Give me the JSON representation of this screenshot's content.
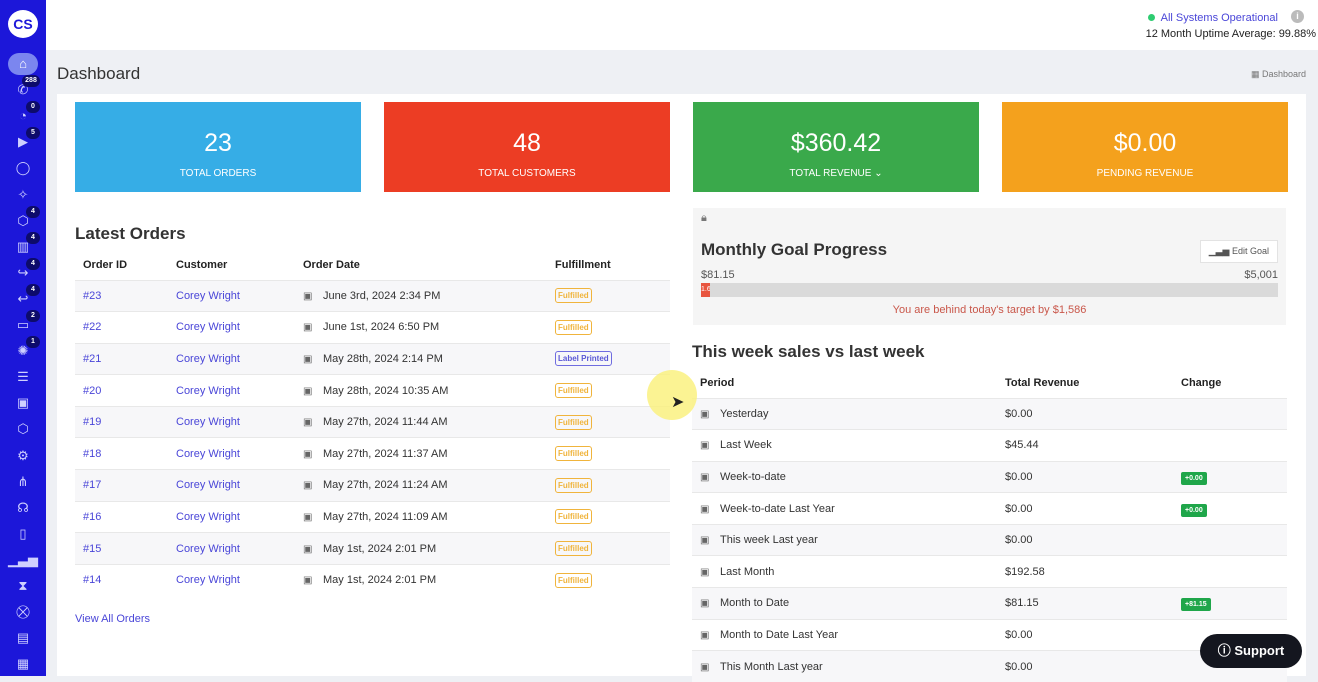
{
  "sidebar": {
    "logo": "CS",
    "items": [
      {
        "icon": "home-icon",
        "glyph": "⌂",
        "badge": null
      },
      {
        "icon": "phone-icon",
        "glyph": "✆",
        "badge": "288"
      },
      {
        "icon": "rss-icon",
        "glyph": "◔",
        "badge": "0"
      },
      {
        "icon": "play-icon",
        "glyph": "▶",
        "badge": "5"
      },
      {
        "icon": "chat-icon",
        "glyph": "◯",
        "badge": null
      },
      {
        "icon": "magic-wand-icon",
        "glyph": "✧",
        "badge": null
      },
      {
        "icon": "box-icon",
        "glyph": "⬡",
        "badge": "4"
      },
      {
        "icon": "barcode-scan-icon",
        "glyph": "▥",
        "badge": "4"
      },
      {
        "icon": "forward-icon",
        "glyph": "↪",
        "badge": "4"
      },
      {
        "icon": "return-icon",
        "glyph": "↩",
        "badge": "4"
      },
      {
        "icon": "ticket-icon",
        "glyph": "▭",
        "badge": "2"
      },
      {
        "icon": "party-icon",
        "glyph": "✺",
        "badge": "1"
      },
      {
        "icon": "user-list-icon",
        "glyph": "☰",
        "badge": null
      },
      {
        "icon": "video-icon",
        "glyph": "▣",
        "badge": null
      },
      {
        "icon": "package-icon",
        "glyph": "⬡",
        "badge": null
      },
      {
        "icon": "gear-icon",
        "glyph": "⚙",
        "badge": null
      },
      {
        "icon": "share-icon",
        "glyph": "⋔",
        "badge": null
      },
      {
        "icon": "headset-icon",
        "glyph": "☊",
        "badge": null
      },
      {
        "icon": "mobile-icon",
        "glyph": "▯",
        "badge": null
      },
      {
        "icon": "bar-chart-icon",
        "glyph": "▁▃▅",
        "badge": null
      },
      {
        "icon": "hourglass-icon",
        "glyph": "⧗",
        "badge": null
      },
      {
        "icon": "cart-icon",
        "glyph": "⛒",
        "badge": null
      },
      {
        "icon": "list-icon",
        "glyph": "▤",
        "badge": null
      },
      {
        "icon": "store-icon",
        "glyph": "▦",
        "badge": null
      }
    ]
  },
  "header": {
    "status": "All Systems Operational",
    "uptime": "12 Month Uptime Average: 99.88%"
  },
  "page": {
    "title": "Dashboard",
    "breadcrumb": "Dashboard"
  },
  "cards": [
    {
      "value": "23",
      "label": "Total Orders",
      "color": "#36ade6"
    },
    {
      "value": "48",
      "label": "Total Customers",
      "color": "#ec3d24"
    },
    {
      "value": "$360.42",
      "label": "Total Revenue ⌄",
      "color": "#3aa94b"
    },
    {
      "value": "$0.00",
      "label": "Pending Revenue",
      "color": "#f4a11d"
    }
  ],
  "orders": {
    "title": "Latest Orders",
    "headers": [
      "Order ID",
      "Customer",
      "Order Date",
      "Fulfillment"
    ],
    "rows": [
      [
        "#23",
        "Corey Wright",
        "June 3rd, 2024 2:34 PM",
        "Fulfilled"
      ],
      [
        "#22",
        "Corey Wright",
        "June 1st, 2024 6:50 PM",
        "Fulfilled"
      ],
      [
        "#21",
        "Corey Wright",
        "May 28th, 2024 2:14 PM",
        "Label Printed"
      ],
      [
        "#20",
        "Corey Wright",
        "May 28th, 2024 10:35 AM",
        "Fulfilled"
      ],
      [
        "#19",
        "Corey Wright",
        "May 27th, 2024 11:44 AM",
        "Fulfilled"
      ],
      [
        "#18",
        "Corey Wright",
        "May 27th, 2024 11:37 AM",
        "Fulfilled"
      ],
      [
        "#17",
        "Corey Wright",
        "May 27th, 2024 11:24 AM",
        "Fulfilled"
      ],
      [
        "#16",
        "Corey Wright",
        "May 27th, 2024 11:09 AM",
        "Fulfilled"
      ],
      [
        "#15",
        "Corey Wright",
        "May 1st, 2024 2:01 PM",
        "Fulfilled"
      ],
      [
        "#14",
        "Corey Wright",
        "May 1st, 2024 2:01 PM",
        "Fulfilled"
      ]
    ],
    "view_all": "View All Orders"
  },
  "goal": {
    "title": "Monthly Goal Progress",
    "edit": "Edit Goal",
    "current": "$81.15",
    "target": "$5,001",
    "percent": 1.62,
    "percent_label": "1.62%",
    "message": "You are behind today's target by $1,586"
  },
  "weekly": {
    "title": "This week sales vs last week",
    "headers": [
      "Period",
      "Total Revenue",
      "Change"
    ],
    "rows": [
      [
        "Yesterday",
        "$0.00",
        ""
      ],
      [
        "Last Week",
        "$45.44",
        ""
      ],
      [
        "Week-to-date",
        "$0.00",
        "+0.00"
      ],
      [
        "Week-to-date Last Year",
        "$0.00",
        "+0.00"
      ],
      [
        "This week Last year",
        "$0.00",
        ""
      ],
      [
        "Last Month",
        "$192.58",
        ""
      ],
      [
        "Month to Date",
        "$81.15",
        "+81.15"
      ],
      [
        "Month to Date Last Year",
        "$0.00",
        ""
      ],
      [
        "This Month Last year",
        "$0.00",
        ""
      ]
    ]
  },
  "support": "Support"
}
